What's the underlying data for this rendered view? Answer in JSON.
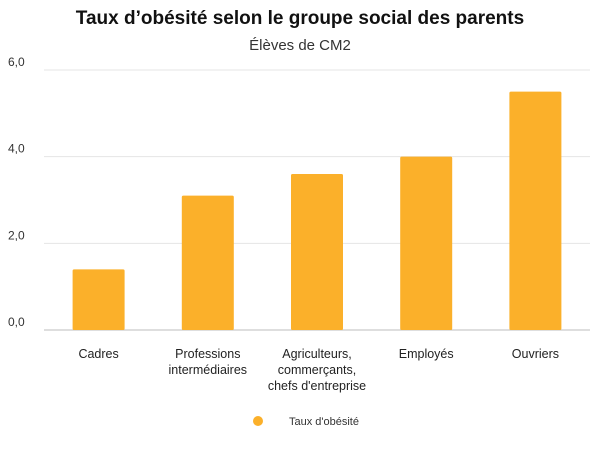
{
  "chart_data": {
    "type": "bar",
    "title": "Taux d’obésité selon le groupe social des parents",
    "subtitle": "Élèves de CM2",
    "categories": [
      [
        "Cadres"
      ],
      [
        "Professions",
        "intermédiaires"
      ],
      [
        "Agriculteurs,",
        "commerçants,",
        "chefs d'entreprise"
      ],
      [
        "Employés"
      ],
      [
        "Ouvriers"
      ]
    ],
    "series": [
      {
        "name": "Taux d'obésité",
        "values": [
          1.4,
          3.1,
          3.6,
          4.0,
          5.5
        ],
        "color": "#fbb02a"
      }
    ],
    "yticks": [
      "0,0",
      "2,0",
      "4,0",
      "6,0"
    ],
    "ylim": [
      0,
      6
    ],
    "grid": true,
    "legend_position": "bottom"
  }
}
